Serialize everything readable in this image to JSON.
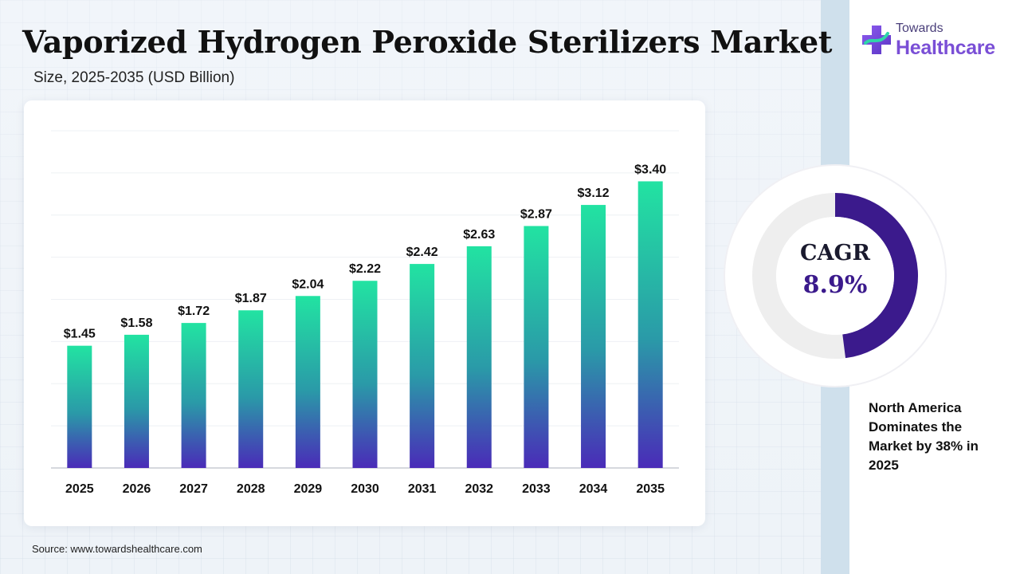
{
  "header": {
    "title": "Vaporized Hydrogen Peroxide Sterilizers Market",
    "subtitle": "Size, 2025-2035 (USD Billion)"
  },
  "logo": {
    "small": "Towards",
    "big": "Healthcare"
  },
  "cagr": {
    "label": "CAGR",
    "value": "8.9%",
    "fraction": 0.48
  },
  "note": "North America Dominates the Market by 38% in 2025",
  "source": "Source: www.towardshealthcare.com",
  "colors": {
    "bar_top": "#22e3a2",
    "bar_bottom": "#4a2bb8",
    "cagr_arc": "#3b1a8c",
    "donut_track": "#eeeeee"
  },
  "chart_data": {
    "type": "bar",
    "categories": [
      "2025",
      "2026",
      "2027",
      "2028",
      "2029",
      "2030",
      "2031",
      "2032",
      "2033",
      "2034",
      "2035"
    ],
    "values": [
      1.45,
      1.58,
      1.72,
      1.87,
      2.04,
      2.22,
      2.42,
      2.63,
      2.87,
      3.12,
      3.4
    ],
    "value_labels": [
      "$1.45",
      "$1.58",
      "$1.72",
      "$1.87",
      "$2.04",
      "$2.22",
      "$2.42",
      "$2.63",
      "$2.87",
      "$3.12",
      "$3.40"
    ],
    "ylim": [
      0,
      4
    ],
    "grid": true
  }
}
